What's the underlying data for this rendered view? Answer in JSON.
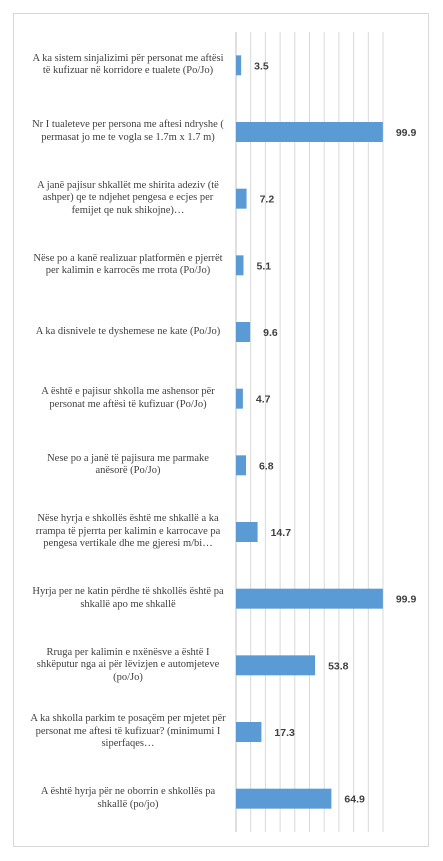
{
  "chart_data": {
    "type": "bar",
    "orientation": "horizontal",
    "categories": [
      "A ka sistem sinjalizimi për personat me aftësi të kufizuar në korridore e tualete (Po/Jo)",
      "Nr I tualeteve per persona me aftesi ndryshe ( permasat jo me te vogla se 1.7m x 1.7 m)",
      "A janë pajisur shkallët me shirita adeziv (të ashper) qe te ndjehet pengesa e ecjes per femijet qe nuk shikojne)…",
      "Nëse po a kanë realizuar platformën e pjerrët per kalimin e karrocës me rrota (Po/Jo)",
      "A ka disnivele te dyshemese ne kate (Po/Jo)",
      "A është e pajisur shkolla me ashensor për personat me aftësi të kufizuar (Po/Jo)",
      "Nese po a janë të pajisura me parmake anësorë (Po/Jo)",
      "Nëse hyrja e shkollës është me shkallë a ka rrampa të pjerrta per kalimin e karrocave pa pengesa vertikale dhe me gjeresi m/bi…",
      "Hyrja per ne katin përdhe të shkollës është pa shkallë apo me shkallë",
      "Rruga per kalimin e nxënësve a është I shkëputur nga ai për lëvizjen e automjeteve (po/Jo)",
      "A ka shkolla parkim te posaçëm per mjetet për personat me aftesi të kufizuar? (minimumi I siperfaqes…",
      "A është hyrja për ne oborrin e shkollës pa shkallë (po/jo)"
    ],
    "values": [
      3.5,
      99.9,
      7.2,
      5.1,
      9.6,
      4.7,
      6.8,
      14.7,
      99.9,
      53.8,
      17.3,
      64.9
    ],
    "data_labels": [
      "3.5",
      "99.9",
      "7.2",
      "5.1",
      "9.6",
      "4.7",
      "6.8",
      "14.7",
      "99.9",
      "53.8",
      "17.3",
      "64.9"
    ],
    "xlim": [
      0,
      100
    ],
    "grid": true,
    "legend": "none",
    "bar_color": "#5b9bd5",
    "grid_color": "#d9d9d9",
    "axis_color": "#bfbfbf",
    "label_color": "#404040"
  }
}
